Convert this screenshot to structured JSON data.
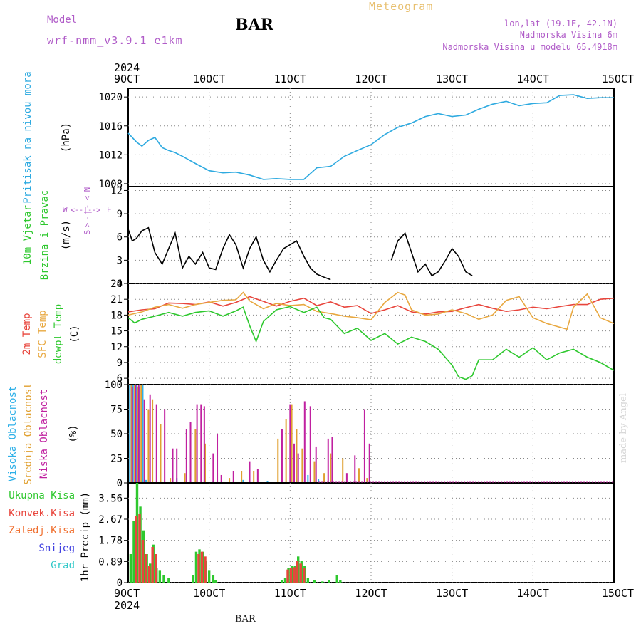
{
  "header": {
    "model_label": "Model",
    "model_name": "wrf-nmm_v3.9.1 e1km",
    "station": "BAR",
    "product": "Meteogram",
    "location_lines": [
      "lon,lat (19.1E, 42.1N)",
      "Nadmorska Visina 6m",
      "Nadmorska Visina u modelu 65.4918m"
    ]
  },
  "footer": {
    "station": "BAR",
    "credit": "made by Angel"
  },
  "colors": {
    "pressure": "#2eaae0",
    "temp2m": "#e8453c",
    "sfc_temp": "#e8a840",
    "dewpoint": "#2ec82e",
    "high_cloud": "#2eb0e8",
    "mid_cloud": "#e0a030",
    "low_cloud": "#c020a0",
    "total_precip": "#2ec82e",
    "conv_precip": "#e8453c",
    "frozen_precip": "#f07030",
    "snow": "#4040e0",
    "hail": "#30c8c8",
    "model": "#b05cc8"
  },
  "time_axis": {
    "year": "2024",
    "labels": [
      "9OCT",
      "10OCT",
      "11OCT",
      "12OCT",
      "13OCT",
      "14OCT",
      "15OCT"
    ],
    "x_range": [
      9,
      15
    ]
  },
  "chart_data": [
    {
      "type": "line",
      "panel": "pressure",
      "ylabel": "(hPa)",
      "side_labels": [
        "Pritisak na nivou mora"
      ],
      "ylim": [
        1007.6,
        1021.2
      ],
      "yticks": [
        1008,
        1012,
        1016,
        1020
      ],
      "grid": true,
      "series": [
        {
          "color": "#2eaae0",
          "x": [
            9.0,
            9.1,
            9.17,
            9.25,
            9.33,
            9.42,
            9.5,
            9.58,
            9.67,
            9.83,
            10.0,
            10.17,
            10.33,
            10.5,
            10.67,
            10.83,
            11.0,
            11.17,
            11.33,
            11.5,
            11.67,
            11.83,
            12.0,
            12.17,
            12.33,
            12.5,
            12.67,
            12.83,
            13.0,
            13.17,
            13.33,
            13.5,
            13.67,
            13.83,
            14.0,
            14.17,
            14.33,
            14.5,
            14.67,
            14.83,
            15.0
          ],
          "values": [
            1015,
            1013.8,
            1013.2,
            1014,
            1014.4,
            1013,
            1012.6,
            1012.3,
            1011.8,
            1010.8,
            1009.8,
            1009.5,
            1009.6,
            1009.2,
            1008.6,
            1008.7,
            1008.6,
            1008.6,
            1010.2,
            1010.4,
            1011.8,
            1012.6,
            1013.4,
            1014.8,
            1015.8,
            1016.4,
            1017.3,
            1017.7,
            1017.3,
            1017.5,
            1018.3,
            1019,
            1019.4,
            1018.8,
            1019.1,
            1019.2,
            1020.2,
            1020.3,
            1019.8,
            1019.9,
            1019.9
          ]
        }
      ]
    },
    {
      "type": "line",
      "panel": "wind",
      "ylabel": "(m/s)",
      "side_labels": [
        "10m Vjetar",
        "Brzina i Pravac"
      ],
      "compass": [
        "N",
        "S",
        "W",
        "E"
      ],
      "ylim": [
        0,
        12.5
      ],
      "yticks": [
        0,
        3,
        6,
        9,
        12
      ],
      "grid": true,
      "series": [
        {
          "name": "speed",
          "color": "#000000",
          "x": [
            9.0,
            9.05,
            9.1,
            9.17,
            9.25,
            9.33,
            9.42,
            9.5,
            9.58,
            9.67,
            9.75,
            9.83,
            9.92,
            10.0,
            10.08,
            10.17,
            10.25,
            10.33,
            10.42,
            10.5,
            10.58,
            10.67,
            10.75,
            10.83,
            10.92,
            11.0,
            11.08,
            11.17,
            11.25,
            11.33,
            11.42,
            11.5
          ],
          "values": [
            7.0,
            5.5,
            5.8,
            6.8,
            7.2,
            4.0,
            2.5,
            4.5,
            6.5,
            2.0,
            3.5,
            2.5,
            4.0,
            2.0,
            1.8,
            4.5,
            6.3,
            5.0,
            2.0,
            4.5,
            6.0,
            3.0,
            1.5,
            3.0,
            4.5,
            5.0,
            5.5,
            3.5,
            2.0,
            1.2,
            0.8,
            0.5
          ]
        },
        {
          "name": "speed-2",
          "color": "#000000",
          "x": [
            12.25,
            12.33,
            12.42,
            12.5,
            12.58,
            12.67,
            12.75,
            12.83,
            12.92,
            13.0,
            13.08,
            13.17,
            13.25
          ],
          "values": [
            3.0,
            5.5,
            6.5,
            4.0,
            1.5,
            2.5,
            1.0,
            1.5,
            3.0,
            4.5,
            3.5,
            1.5,
            1.0
          ]
        }
      ]
    },
    {
      "type": "line",
      "panel": "temperature",
      "ylabel": "(C)",
      "side_labels": [
        "2m Temp",
        "SFC Temp",
        "dewpt Temp"
      ],
      "ylim": [
        4.8,
        24
      ],
      "yticks": [
        6,
        9,
        12,
        15,
        18,
        21,
        24
      ],
      "grid": true,
      "series": [
        {
          "name": "2m Temp",
          "color": "#e8453c",
          "x": [
            9.0,
            9.17,
            9.33,
            9.5,
            9.67,
            9.83,
            10.0,
            10.17,
            10.33,
            10.5,
            10.67,
            10.83,
            11.0,
            11.17,
            11.33,
            11.5,
            11.67,
            11.83,
            12.0,
            12.17,
            12.33,
            12.5,
            12.67,
            12.83,
            13.0,
            13.17,
            13.33,
            13.5,
            13.67,
            13.83,
            14.0,
            14.17,
            14.33,
            14.5,
            14.67,
            14.83,
            15.0
          ],
          "values": [
            18.6,
            19.0,
            19.2,
            20.3,
            20.2,
            20.0,
            20.5,
            19.7,
            20.4,
            21.5,
            20.6,
            19.7,
            20.6,
            21.2,
            19.8,
            20.5,
            19.5,
            19.8,
            18.3,
            19.0,
            19.8,
            18.6,
            18.2,
            18.6,
            18.7,
            19.4,
            20.0,
            19.3,
            18.7,
            19.0,
            19.5,
            19.2,
            19.6,
            20.0,
            20.0,
            21.0,
            21.2
          ]
        },
        {
          "name": "SFC Temp",
          "color": "#e8a840",
          "x": [
            9.0,
            9.17,
            9.33,
            9.5,
            9.67,
            9.83,
            10.0,
            10.17,
            10.33,
            10.42,
            10.5,
            10.67,
            10.83,
            11.0,
            11.17,
            11.33,
            11.5,
            11.67,
            11.83,
            12.0,
            12.17,
            12.33,
            12.42,
            12.5,
            12.67,
            12.83,
            13.0,
            13.17,
            13.33,
            13.5,
            13.67,
            13.83,
            14.0,
            14.17,
            14.33,
            14.42,
            14.5,
            14.67,
            14.83,
            15.0
          ],
          "values": [
            18.0,
            18.6,
            19.5,
            20.0,
            19.3,
            20.0,
            20.4,
            20.8,
            20.9,
            22.3,
            20.7,
            19.2,
            20.2,
            19.8,
            20.0,
            18.7,
            18.3,
            17.8,
            17.5,
            17.1,
            20.4,
            22.3,
            21.8,
            19.0,
            18.0,
            18.2,
            19.0,
            18.3,
            17.2,
            18.0,
            20.8,
            21.5,
            17.5,
            16.4,
            15.7,
            15.3,
            19.5,
            22.0,
            17.5,
            16.4
          ]
        },
        {
          "name": "dewpt Temp",
          "color": "#2ec82e",
          "x": [
            9.0,
            9.08,
            9.17,
            9.33,
            9.5,
            9.67,
            9.83,
            10.0,
            10.17,
            10.33,
            10.42,
            10.5,
            10.58,
            10.67,
            10.83,
            11.0,
            11.17,
            11.33,
            11.42,
            11.5,
            11.67,
            11.83,
            12.0,
            12.17,
            12.33,
            12.5,
            12.67,
            12.83,
            13.0,
            13.08,
            13.17,
            13.25,
            13.33,
            13.5,
            13.67,
            13.83,
            14.0,
            14.17,
            14.33,
            14.5,
            14.67,
            14.83,
            15.0
          ],
          "values": [
            17.5,
            16.5,
            17.2,
            17.8,
            18.5,
            17.8,
            18.5,
            18.8,
            17.8,
            18.8,
            19.5,
            16.0,
            13.0,
            16.8,
            19.0,
            19.6,
            18.5,
            19.5,
            17.5,
            17.2,
            14.5,
            15.5,
            13.2,
            14.5,
            12.5,
            13.8,
            13.0,
            11.5,
            8.5,
            6.3,
            5.8,
            6.5,
            9.5,
            9.5,
            11.5,
            10.0,
            11.8,
            9.5,
            10.8,
            11.5,
            10.0,
            9.0,
            7.5
          ]
        }
      ]
    },
    {
      "type": "bar",
      "panel": "cloud",
      "ylabel": "(%)",
      "side_labels": [
        "Visoka Oblacnost",
        "Srednja Oblacnost",
        "Niska Oblacnost"
      ],
      "ylim": [
        0,
        100
      ],
      "yticks": [
        0,
        25,
        50,
        75,
        100
      ],
      "grid": true,
      "series": [
        {
          "name": "Visoka Oblacnost",
          "color": "#2eb0e8",
          "x": [
            9.02,
            9.06,
            9.1,
            9.14,
            9.18,
            9.22,
            9.6,
            10.05,
            10.42,
            10.72,
            11.22,
            11.35
          ],
          "values": [
            100,
            100,
            100,
            98,
            100,
            3,
            5,
            2,
            3,
            2,
            8,
            4
          ]
        },
        {
          "name": "Srednja Oblacnost",
          "color": "#e0a030",
          "x": [
            9.04,
            9.08,
            9.12,
            9.16,
            9.25,
            9.3,
            9.4,
            9.52,
            9.7,
            9.83,
            9.95,
            10.1,
            10.25,
            10.4,
            10.55,
            10.85,
            10.95,
            11.02,
            11.08,
            11.15,
            11.3,
            11.42,
            11.5,
            11.65,
            11.85,
            11.95
          ],
          "values": [
            100,
            100,
            98,
            100,
            75,
            85,
            60,
            5,
            10,
            55,
            40,
            10,
            5,
            12,
            12,
            45,
            65,
            80,
            55,
            35,
            22,
            10,
            30,
            25,
            15,
            5
          ]
        },
        {
          "name": "Niska Oblacnost",
          "color": "#c020a0",
          "x": [
            9.05,
            9.09,
            9.13,
            9.2,
            9.27,
            9.35,
            9.45,
            9.55,
            9.6,
            9.72,
            9.77,
            9.85,
            9.9,
            9.94,
            10.05,
            10.1,
            10.15,
            10.3,
            10.5,
            10.6,
            10.9,
            11.0,
            11.05,
            11.1,
            11.18,
            11.25,
            11.32,
            11.47,
            11.52,
            11.7,
            11.8,
            11.92,
            11.98
          ],
          "values": [
            98,
            100,
            100,
            85,
            90,
            80,
            75,
            35,
            35,
            55,
            62,
            80,
            80,
            78,
            30,
            50,
            8,
            12,
            22,
            14,
            55,
            80,
            40,
            30,
            83,
            78,
            37,
            45,
            47,
            10,
            28,
            75,
            40
          ]
        }
      ]
    },
    {
      "type": "bar",
      "panel": "precipitation",
      "ylabel": "1hr Precip (mm)",
      "side_labels": [
        "Ukupna Kisa",
        "Konvek.Kisa",
        "Zaledj.Kisa",
        "Snijeg",
        "Grad"
      ],
      "ylim": [
        0,
        4.2
      ],
      "yticks": [
        0,
        0.89,
        1.78,
        2.67,
        3.56
      ],
      "grid": true,
      "series": [
        {
          "name": "Ukupna Kisa",
          "color": "#2ec82e",
          "x": [
            9.03,
            9.07,
            9.11,
            9.15,
            9.19,
            9.23,
            9.27,
            9.31,
            9.35,
            9.39,
            9.44,
            9.5,
            9.8,
            9.84,
            9.88,
            9.92,
            9.96,
            10.0,
            10.05,
            10.08,
            10.9,
            10.94,
            10.98,
            11.02,
            11.06,
            11.1,
            11.14,
            11.18,
            11.22,
            11.3,
            11.4,
            11.48,
            11.58,
            11.62
          ],
          "values": [
            1.2,
            2.6,
            4.2,
            3.2,
            2.2,
            1.2,
            0.8,
            1.6,
            0.6,
            0.5,
            0.3,
            0.2,
            0.3,
            1.3,
            1.4,
            1.3,
            0.9,
            0.5,
            0.3,
            0.1,
            0.1,
            0.2,
            0.6,
            0.7,
            0.7,
            1.1,
            0.9,
            0.7,
            0.2,
            0.1,
            0.05,
            0.1,
            0.3,
            0.1
          ]
        },
        {
          "name": "Konvek.Kisa",
          "color": "#e8453c",
          "x": [
            9.09,
            9.13,
            9.17,
            9.21,
            9.25,
            9.29,
            9.33,
            9.86,
            9.9,
            9.94,
            10.96,
            11.0,
            11.04,
            11.08,
            11.12,
            11.16
          ],
          "values": [
            2.8,
            2.9,
            1.8,
            1.2,
            0.7,
            1.5,
            1.2,
            1.2,
            1.3,
            1.1,
            0.55,
            0.6,
            0.65,
            0.9,
            0.8,
            0.6
          ]
        }
      ]
    }
  ]
}
